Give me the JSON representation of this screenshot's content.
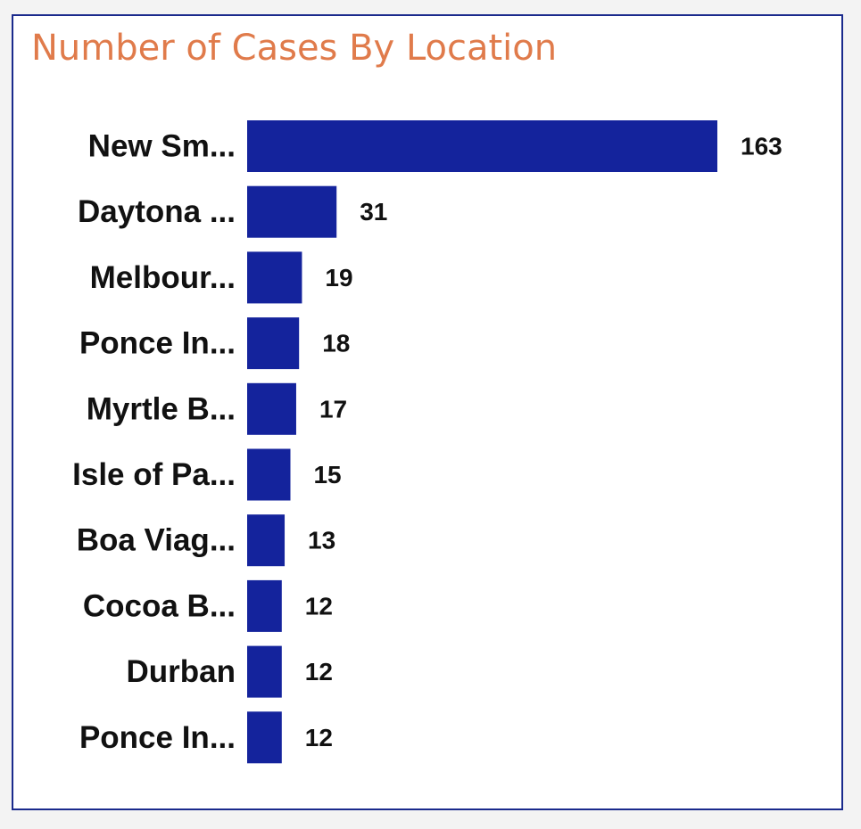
{
  "chart_data": {
    "type": "bar",
    "orientation": "horizontal",
    "title": "Number of Cases By Location",
    "xlabel": "",
    "ylabel": "",
    "categories": [
      "New Sm...",
      "Daytona ...",
      "Melbour...",
      "Ponce In...",
      "Myrtle B...",
      "Isle of Pa...",
      "Boa Viag...",
      "Cocoa B...",
      "Durban",
      "Ponce In..."
    ],
    "values": [
      163,
      31,
      19,
      18,
      17,
      15,
      13,
      12,
      12,
      12
    ],
    "data_labels": [
      "163",
      "31",
      "19",
      "18",
      "17",
      "15",
      "13",
      "12",
      "12",
      "12"
    ],
    "xlim": [
      0,
      163
    ],
    "grid": false,
    "legend": "none",
    "colors": {
      "bar": "#14239c",
      "title": "#e07b4b",
      "border": "#1a2a8c",
      "text": "#111111"
    }
  }
}
